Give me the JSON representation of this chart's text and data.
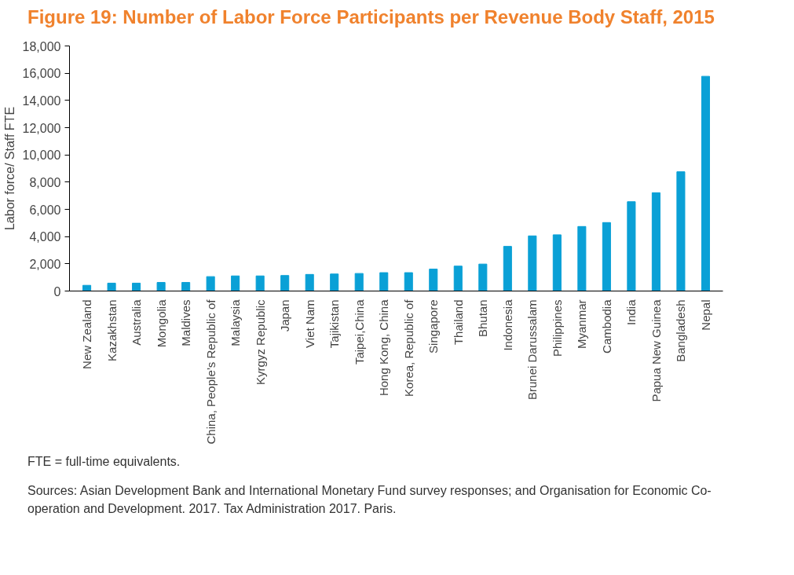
{
  "chart_data": {
    "type": "bar",
    "title": "Figure 19: Number of Labor Force Participants per Revenue Body Staff, 2015",
    "ylabel": "Labor force/ Staff FTE",
    "categories": [
      "New Zealand",
      "Kazakhstan",
      "Australia",
      "Mongolia",
      "Maldives",
      "China, People’s Republic of",
      "Malaysia",
      "Kyrgyz Republic",
      "Japan",
      "Viet Nam",
      "Tajikistan",
      "Taipei,China",
      "Hong Kong, China",
      "Korea, Republic of",
      "Singapore",
      "Thailand",
      "Bhutan",
      "Indonesia",
      "Brunei Darussalam",
      "Philippines",
      "Myanmar",
      "Cambodia",
      "India",
      "Papua New Guinea",
      "Bangladesh",
      "Nepal"
    ],
    "values": [
      420,
      580,
      580,
      630,
      630,
      1060,
      1110,
      1110,
      1140,
      1220,
      1250,
      1290,
      1350,
      1350,
      1610,
      1830,
      1980,
      3280,
      4050,
      4130,
      4740,
      5030,
      6560,
      7220,
      8760,
      15770
    ],
    "color": "#0aa0d6",
    "ylim": [
      0,
      18000
    ],
    "yticks": [
      {
        "value": 0,
        "label": "0"
      },
      {
        "value": 2000,
        "label": "2,000"
      },
      {
        "value": 4000,
        "label": "4,000"
      },
      {
        "value": 6000,
        "label": "6,000"
      },
      {
        "value": 8000,
        "label": "8,000"
      },
      {
        "value": 10000,
        "label": "10,000"
      },
      {
        "value": 12000,
        "label": "12,000"
      },
      {
        "value": 14000,
        "label": "14,000"
      },
      {
        "value": 16000,
        "label": "16,000"
      },
      {
        "value": 18000,
        "label": "18,000"
      }
    ],
    "grid": false,
    "annotations": [
      "FTE = full-time equivalents.",
      "Sources: Asian Development Bank and International Monetary Fund survey responses; and Organisation for Economic Co-operation and Development. 2017. Tax Administration 2017. Paris."
    ]
  }
}
